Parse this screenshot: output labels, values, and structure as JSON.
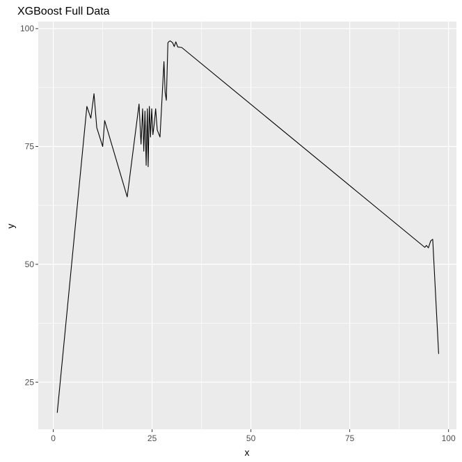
{
  "chart_data": {
    "type": "line",
    "title": "XGBoost Full Data",
    "xlabel": "x",
    "ylabel": "y",
    "xlim": [
      -3.8,
      102
    ],
    "ylim": [
      15,
      101.5
    ],
    "x_ticks": [
      0,
      25,
      50,
      75,
      100
    ],
    "y_ticks": [
      25,
      50,
      75,
      100
    ],
    "x_tick_labels": [
      "0",
      "25",
      "50",
      "75",
      "100"
    ],
    "y_tick_labels": [
      "25",
      "50",
      "75",
      "100"
    ],
    "grid": true,
    "legend": "none",
    "series": [
      {
        "color": "#000000",
        "x": [
          1,
          8.5,
          9.5,
          10.3,
          11,
          12.5,
          13,
          18.7,
          21.7,
          22.2,
          22.6,
          22.9,
          23.2,
          23.5,
          23.8,
          24,
          24.3,
          24.6,
          24.9,
          25.2,
          25.5,
          25.9,
          26.3,
          27,
          28,
          28.3,
          28.6,
          29,
          29.3,
          29.6,
          30.2,
          30.6,
          31,
          31.5,
          32.5,
          94,
          94.4,
          94.9,
          95.5,
          96,
          97.5
        ],
        "y": [
          18.5,
          83.5,
          81,
          86.2,
          79,
          75,
          80.5,
          64.3,
          84,
          75.5,
          83,
          74,
          82.5,
          71,
          83,
          70.7,
          83.5,
          77,
          83,
          77.5,
          79.5,
          83,
          78.5,
          77,
          93,
          86.5,
          84.8,
          97,
          97.3,
          97.4,
          97,
          96.2,
          97.2,
          96.1,
          96,
          53.6,
          54,
          53.5,
          55,
          55.3,
          31
        ]
      }
    ]
  }
}
